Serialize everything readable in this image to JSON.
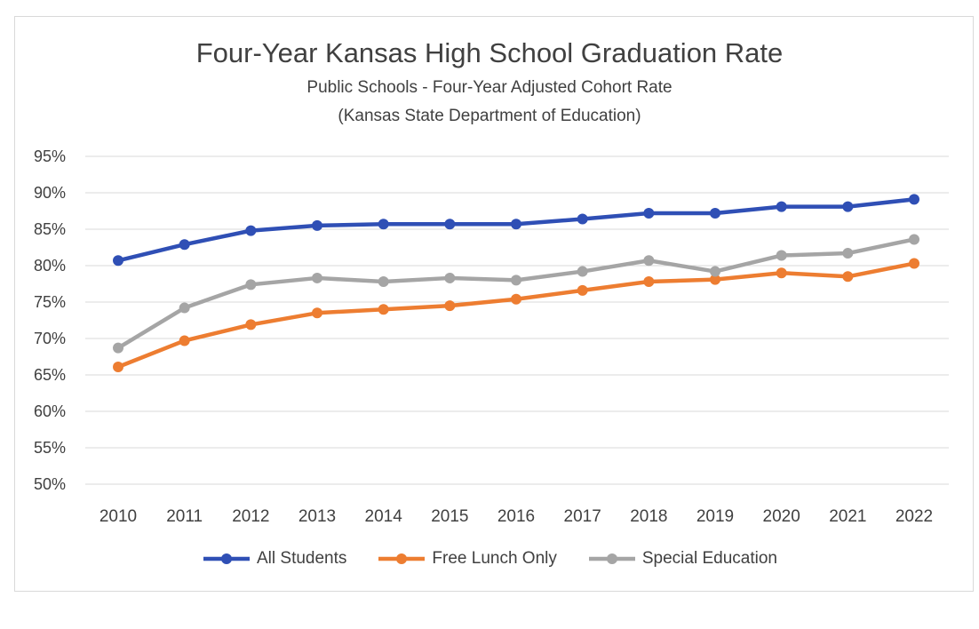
{
  "chart_data": {
    "type": "line",
    "title": "Four-Year Kansas High School Graduation Rate",
    "subtitle": "Public Schools - Four-Year Adjusted Cohort Rate",
    "source": "(Kansas State Department  of Education)",
    "categories": [
      "2010",
      "2011",
      "2012",
      "2013",
      "2014",
      "2015",
      "2016",
      "2017",
      "2018",
      "2019",
      "2020",
      "2021",
      "2022"
    ],
    "y_ticks": [
      "50%",
      "55%",
      "60%",
      "65%",
      "70%",
      "75%",
      "80%",
      "85%",
      "90%",
      "95%"
    ],
    "ylim": [
      50,
      95
    ],
    "grid": true,
    "legend_position": "bottom",
    "series": [
      {
        "name": "All Students",
        "color": "#2f4fb5",
        "values": [
          80.7,
          82.9,
          84.8,
          85.5,
          85.7,
          85.7,
          85.7,
          86.4,
          87.2,
          87.2,
          88.1,
          88.1,
          89.1
        ]
      },
      {
        "name": "Free Lunch Only",
        "color": "#ed7d31",
        "values": [
          66.1,
          69.7,
          71.9,
          73.5,
          74.0,
          74.5,
          75.4,
          76.6,
          77.8,
          78.1,
          79.0,
          78.5,
          80.3
        ]
      },
      {
        "name": "Special Education",
        "color": "#a5a5a5",
        "values": [
          68.7,
          74.2,
          77.4,
          78.3,
          77.8,
          78.3,
          78.0,
          79.2,
          80.7,
          79.2,
          81.4,
          81.7,
          83.6
        ]
      }
    ]
  }
}
